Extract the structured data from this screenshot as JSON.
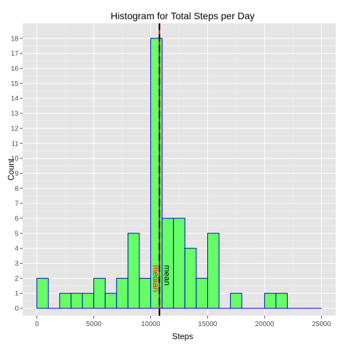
{
  "chart_data": {
    "type": "bar",
    "title": "Histogram for Total Steps per Day",
    "xlabel": "Steps",
    "ylabel": "Count",
    "xlim": [
      -1250,
      26250
    ],
    "ylim": [
      -0.5,
      19
    ],
    "x_ticks": [
      0,
      5000,
      10000,
      15000,
      20000,
      25000
    ],
    "x_tick_labels": [
      "0",
      "5000",
      "10000",
      "15000",
      "20000",
      "25000"
    ],
    "y_ticks": [
      0,
      1,
      2,
      3,
      4,
      5,
      6,
      7,
      8,
      9,
      10,
      11,
      12,
      13,
      14,
      15,
      16,
      17,
      18
    ],
    "y_tick_labels": [
      "0",
      "1",
      "2",
      "3",
      "4",
      "5",
      "6",
      "7",
      "8",
      "9",
      "10",
      "11",
      "12",
      "13",
      "14",
      "15",
      "16",
      "17",
      "18"
    ],
    "grid": true,
    "bin_width": 1000,
    "bin_starts": [
      0,
      1000,
      2000,
      3000,
      4000,
      5000,
      6000,
      7000,
      8000,
      9000,
      10000,
      11000,
      12000,
      13000,
      14000,
      15000,
      16000,
      17000,
      18000,
      19000,
      20000,
      21000,
      22000,
      23000,
      24000
    ],
    "counts": [
      2,
      0,
      1,
      1,
      1,
      2,
      1,
      2,
      5,
      2,
      18,
      6,
      6,
      4,
      2,
      5,
      0,
      1,
      0,
      0,
      1,
      1,
      0,
      0,
      0
    ],
    "bar_fill": "#66ff66",
    "bar_stroke": "#0000cc",
    "panel_background": "#e5e5e5",
    "grid_color": "#ffffff",
    "reference_lines": [
      {
        "label": "median",
        "value": 10765,
        "color": "#ff0000",
        "style": "solid"
      },
      {
        "label": "mean",
        "value": 10766.19,
        "color": "#000000",
        "style": "dashed"
      }
    ]
  }
}
